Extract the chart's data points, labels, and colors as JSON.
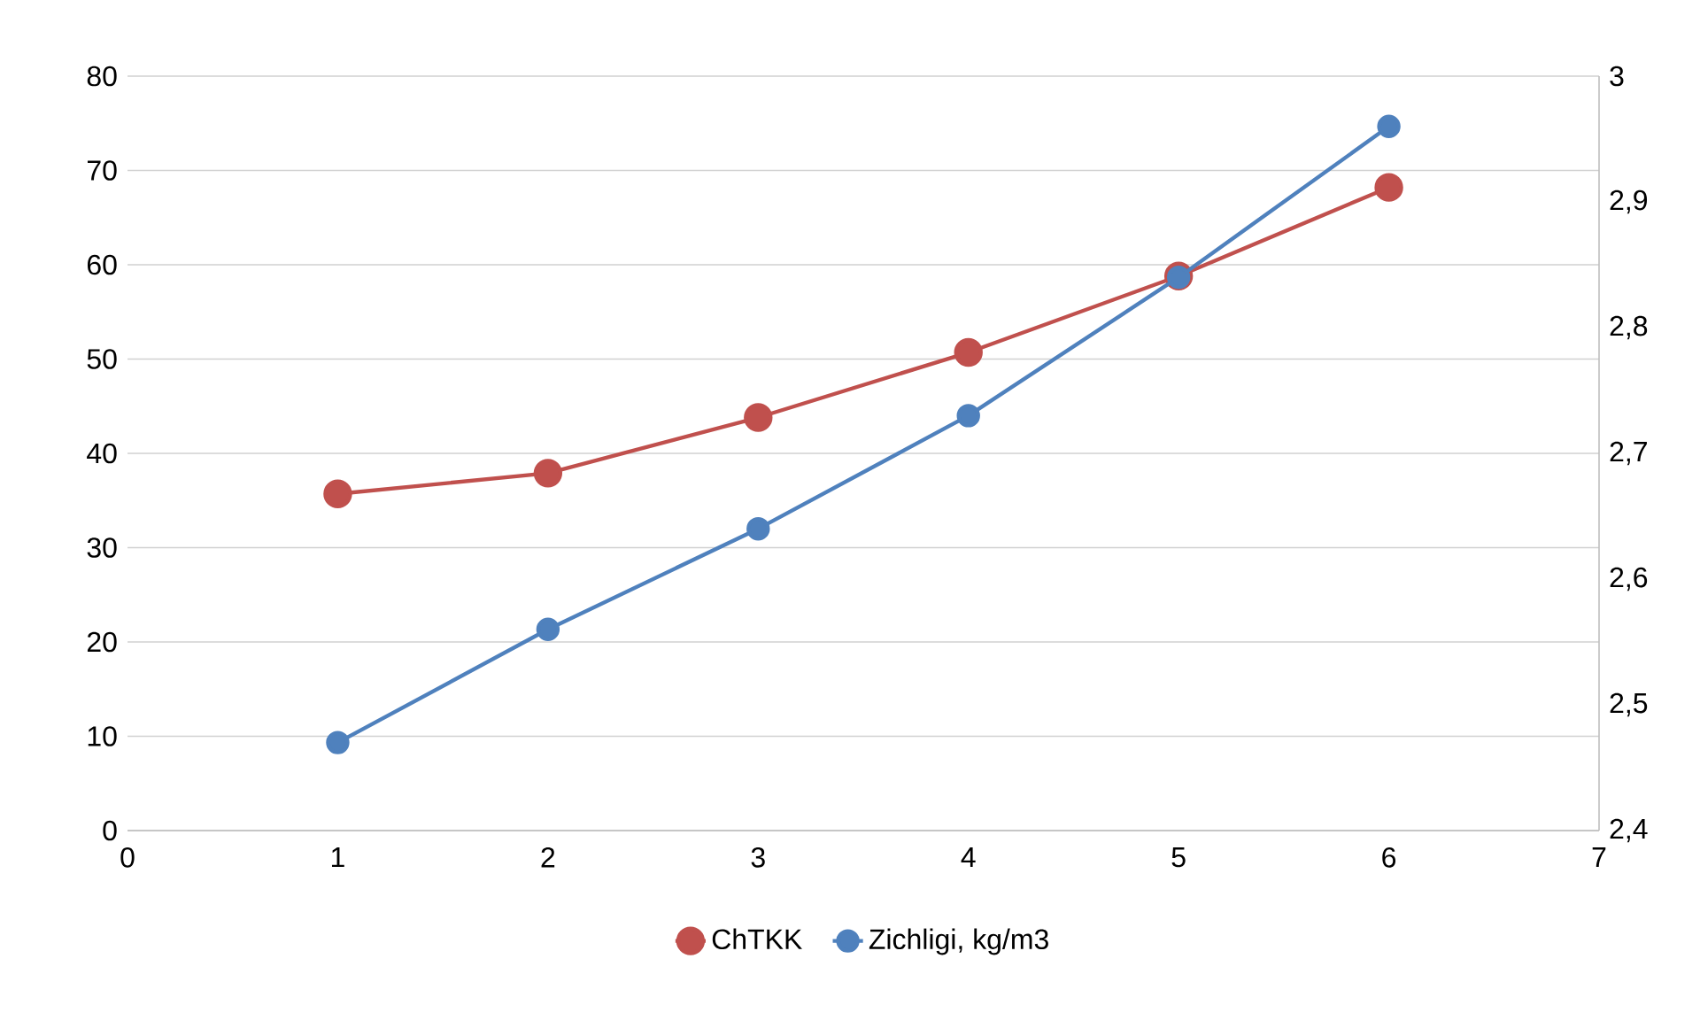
{
  "chart_data": {
    "type": "line",
    "x": [
      1,
      2,
      3,
      4,
      5,
      6
    ],
    "series": [
      {
        "name": "ChTKK",
        "color": "#c0504d",
        "values": [
          35.7,
          37.9,
          43.8,
          50.7,
          58.8,
          68.2
        ]
      },
      {
        "name": "Zichligi, kg/m3",
        "color": "#4f81bd",
        "axis": "y2",
        "values": [
          2.47,
          2.56,
          2.64,
          2.73,
          2.84,
          2.96
        ]
      }
    ],
    "xlim": [
      0,
      7
    ],
    "xticks": [
      0,
      1,
      2,
      3,
      4,
      5,
      6,
      7
    ],
    "ylim": [
      0,
      80
    ],
    "yticks": [
      0,
      10,
      20,
      30,
      40,
      50,
      60,
      70,
      80
    ],
    "y2lim": [
      2.4,
      3
    ],
    "y2ticks": [
      {
        "value": 2.4,
        "label": "2,4"
      },
      {
        "value": 2.5,
        "label": "2,5"
      },
      {
        "value": 2.6,
        "label": "2,6"
      },
      {
        "value": 2.7,
        "label": "2,7"
      },
      {
        "value": 2.8,
        "label": "2,8"
      },
      {
        "value": 2.9,
        "label": "2,9"
      },
      {
        "value": 3,
        "label": "3"
      }
    ],
    "grid": "y",
    "legend": "bottom",
    "marker": "circle",
    "line_style": "solid"
  }
}
